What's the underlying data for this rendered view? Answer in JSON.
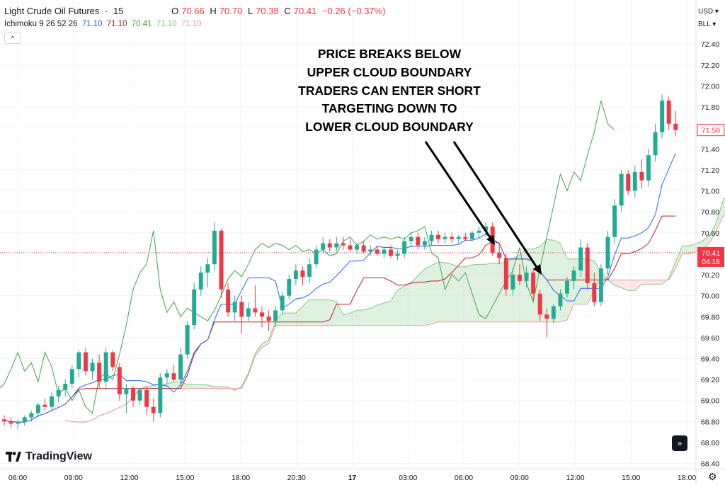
{
  "header": {
    "symbol": "Light Crude Oil Futures",
    "sep": "·",
    "interval": "15",
    "open_label": "O",
    "open": "70.66",
    "high_label": "H",
    "high": "70.70",
    "low_label": "L",
    "low": "70.38",
    "close_label": "C",
    "close": "70.41",
    "change": "−0.26 (−0.37%)"
  },
  "indicator": {
    "name": "Ichimoku 9 26 52 26",
    "values": [
      "71.10",
      "71.10",
      "70.41",
      "71.10",
      "71.10"
    ]
  },
  "controls": {
    "currency": "USD",
    "unit": "BLL",
    "collapse": "^"
  },
  "annotation": [
    "PRICE BREAKS BELOW",
    "UPPER CLOUD BOUNDARY",
    "TRADERS CAN ENTER SHORT",
    "TARGETING DOWN TO",
    "LOWER CLOUD BOUNDARY"
  ],
  "logo_text": "TradingView",
  "price_tags": {
    "last_price": "71.58",
    "current_price": "70.41",
    "countdown": "04:18"
  },
  "colors": {
    "up": "#22ab94",
    "down": "#f23645",
    "tenkan": "#2962ff",
    "kijun": "#b71c1c",
    "chikou": "#43a047",
    "cloud_up": "#a5d6a7",
    "cloud_down": "#f8bbbb"
  },
  "chart_data": {
    "type": "candlestick",
    "title": "Light Crude Oil Futures · 15",
    "y_ticks": [
      "72.40",
      "72.20",
      "72.00",
      "71.80",
      "71.60",
      "71.40",
      "71.20",
      "71.00",
      "70.80",
      "70.60",
      "70.40",
      "70.20",
      "70.00",
      "69.80",
      "69.60",
      "69.40",
      "69.20",
      "69.00",
      "68.80",
      "68.60",
      "68.40"
    ],
    "ylim": [
      68.35,
      72.55
    ],
    "x_ticks": [
      "06:00",
      "09:00",
      "12:00",
      "15:00",
      "18:00",
      "20:30",
      "17",
      "03:00",
      "06:00",
      "09:00",
      "12:00",
      "15:00",
      "18:00"
    ],
    "candles": [
      [
        68.82,
        68.86,
        68.76,
        68.8
      ],
      [
        68.8,
        68.84,
        68.74,
        68.78
      ],
      [
        68.78,
        68.82,
        68.73,
        68.8
      ],
      [
        68.8,
        68.86,
        68.76,
        68.84
      ],
      [
        68.84,
        68.9,
        68.8,
        68.88
      ],
      [
        68.88,
        68.98,
        68.84,
        68.96
      ],
      [
        68.96,
        69.02,
        68.9,
        68.94
      ],
      [
        68.94,
        69.08,
        68.9,
        69.04
      ],
      [
        69.04,
        69.14,
        68.98,
        69.1
      ],
      [
        69.1,
        69.2,
        69.04,
        69.16
      ],
      [
        69.16,
        69.34,
        69.12,
        69.3
      ],
      [
        69.3,
        69.48,
        69.22,
        69.46
      ],
      [
        69.46,
        69.5,
        69.24,
        69.28
      ],
      [
        69.28,
        69.4,
        69.2,
        69.36
      ],
      [
        69.36,
        69.44,
        69.12,
        69.18
      ],
      [
        69.18,
        69.5,
        69.12,
        69.46
      ],
      [
        69.46,
        69.48,
        69.28,
        69.32
      ],
      [
        69.32,
        69.36,
        69.0,
        69.06
      ],
      [
        69.06,
        69.16,
        68.88,
        69.12
      ],
      [
        69.12,
        69.14,
        68.94,
        69.0
      ],
      [
        69.0,
        69.12,
        68.96,
        69.1
      ],
      [
        69.1,
        69.14,
        68.86,
        68.94
      ],
      [
        68.94,
        69.02,
        68.8,
        68.88
      ],
      [
        68.88,
        69.26,
        68.84,
        69.22
      ],
      [
        69.22,
        69.3,
        69.16,
        69.26
      ],
      [
        69.26,
        69.34,
        69.18,
        69.2
      ],
      [
        69.2,
        69.5,
        69.14,
        69.44
      ],
      [
        69.44,
        69.76,
        69.4,
        69.72
      ],
      [
        69.72,
        70.12,
        69.68,
        70.06
      ],
      [
        70.06,
        70.28,
        70.0,
        70.22
      ],
      [
        70.22,
        70.36,
        70.08,
        70.3
      ],
      [
        70.3,
        70.7,
        70.24,
        70.62
      ],
      [
        70.62,
        70.64,
        69.98,
        70.06
      ],
      [
        70.06,
        70.12,
        69.8,
        69.84
      ],
      [
        69.84,
        70.0,
        69.76,
        69.94
      ],
      [
        69.94,
        70.0,
        69.64,
        69.8
      ],
      [
        69.8,
        69.94,
        69.76,
        69.88
      ],
      [
        69.88,
        70.1,
        69.8,
        69.84
      ],
      [
        69.84,
        69.9,
        69.7,
        69.8
      ],
      [
        69.8,
        69.86,
        69.66,
        69.76
      ],
      [
        69.76,
        69.9,
        69.7,
        69.86
      ],
      [
        69.86,
        70.04,
        69.82,
        70.0
      ],
      [
        70.0,
        70.2,
        69.96,
        70.16
      ],
      [
        70.16,
        70.3,
        70.1,
        70.24
      ],
      [
        70.24,
        70.28,
        70.1,
        70.18
      ],
      [
        70.18,
        70.36,
        70.12,
        70.3
      ],
      [
        70.3,
        70.48,
        70.26,
        70.44
      ],
      [
        70.44,
        70.56,
        70.4,
        70.5
      ],
      [
        70.5,
        70.54,
        70.42,
        70.46
      ],
      [
        70.46,
        70.56,
        70.42,
        70.5
      ],
      [
        70.5,
        70.56,
        70.44,
        70.48
      ],
      [
        70.48,
        70.54,
        70.42,
        70.44
      ],
      [
        70.44,
        70.5,
        70.4,
        70.48
      ],
      [
        70.48,
        70.52,
        70.4,
        70.42
      ],
      [
        70.42,
        70.48,
        70.38,
        70.44
      ],
      [
        70.44,
        70.48,
        70.38,
        70.4
      ],
      [
        70.4,
        70.46,
        70.36,
        70.44
      ],
      [
        70.44,
        70.48,
        70.36,
        70.38
      ],
      [
        70.38,
        70.44,
        70.34,
        70.4
      ],
      [
        70.4,
        70.56,
        70.36,
        70.52
      ],
      [
        70.52,
        70.6,
        70.46,
        70.56
      ],
      [
        70.56,
        70.6,
        70.44,
        70.48
      ],
      [
        70.48,
        70.56,
        70.44,
        70.52
      ],
      [
        70.52,
        70.62,
        70.48,
        70.58
      ],
      [
        70.58,
        70.62,
        70.5,
        70.54
      ],
      [
        70.54,
        70.6,
        70.5,
        70.56
      ],
      [
        70.56,
        70.6,
        70.5,
        70.54
      ],
      [
        70.54,
        70.58,
        70.5,
        70.56
      ],
      [
        70.56,
        70.6,
        70.52,
        70.54
      ],
      [
        70.54,
        70.62,
        70.52,
        70.6
      ],
      [
        70.6,
        70.66,
        70.54,
        70.62
      ],
      [
        70.62,
        70.7,
        70.56,
        70.66
      ],
      [
        70.66,
        70.7,
        70.38,
        70.41
      ],
      [
        70.41,
        70.5,
        70.3,
        70.36
      ],
      [
        70.36,
        70.4,
        70.0,
        70.06
      ],
      [
        70.06,
        70.26,
        70.0,
        70.2
      ],
      [
        70.2,
        70.3,
        70.1,
        70.14
      ],
      [
        70.14,
        70.28,
        70.08,
        70.22
      ],
      [
        70.22,
        70.26,
        69.96,
        70.02
      ],
      [
        70.02,
        70.06,
        69.76,
        69.82
      ],
      [
        69.82,
        69.88,
        69.6,
        69.78
      ],
      [
        69.78,
        69.92,
        69.74,
        69.9
      ],
      [
        69.9,
        70.06,
        69.86,
        70.02
      ],
      [
        70.02,
        70.18,
        69.98,
        70.14
      ],
      [
        70.14,
        70.28,
        70.06,
        70.24
      ],
      [
        70.24,
        70.54,
        70.18,
        70.46
      ],
      [
        70.46,
        70.5,
        70.06,
        70.12
      ],
      [
        70.12,
        70.22,
        69.9,
        69.94
      ],
      [
        69.94,
        70.3,
        69.9,
        70.26
      ],
      [
        70.26,
        70.62,
        70.2,
        70.56
      ],
      [
        70.56,
        70.92,
        70.5,
        70.86
      ],
      [
        70.86,
        71.2,
        70.8,
        71.16
      ],
      [
        71.16,
        71.2,
        70.96,
        71.0
      ],
      [
        71.0,
        71.24,
        70.94,
        71.18
      ],
      [
        71.18,
        71.3,
        71.02,
        71.1
      ],
      [
        71.1,
        71.4,
        71.04,
        71.34
      ],
      [
        71.34,
        71.64,
        71.28,
        71.56
      ],
      [
        71.56,
        71.92,
        71.5,
        71.86
      ],
      [
        71.86,
        71.9,
        71.58,
        71.64
      ],
      [
        71.64,
        71.76,
        71.52,
        71.58
      ]
    ]
  }
}
